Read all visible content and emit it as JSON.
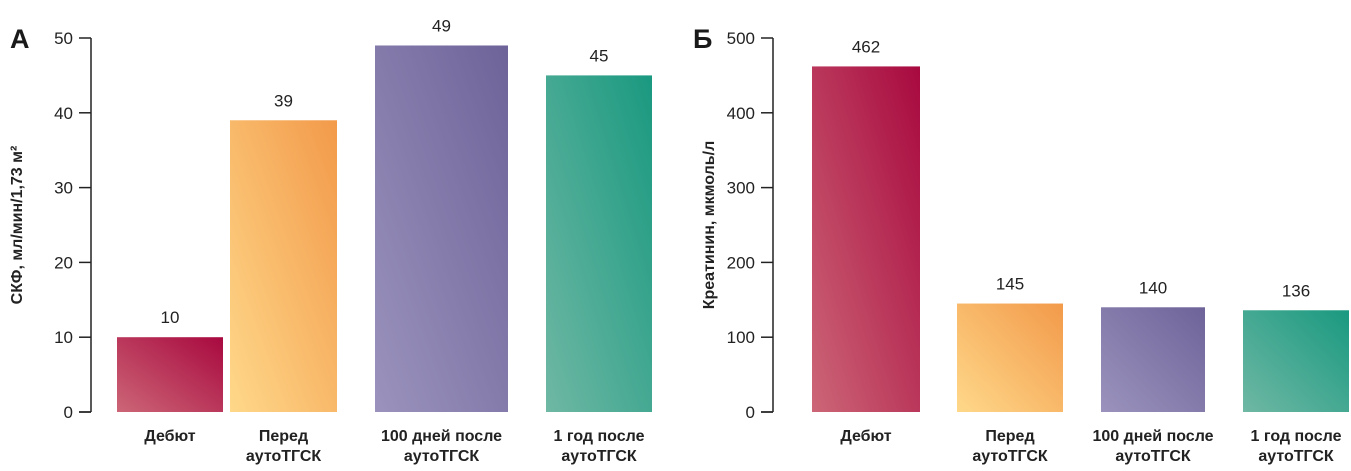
{
  "chart_data": [
    {
      "type": "bar",
      "panel_label": "А",
      "ylabel": "СКФ, мл/мин/1,73 м²",
      "ylim": [
        0,
        50
      ],
      "yticks": [
        0,
        10,
        20,
        30,
        40,
        50
      ],
      "categories": [
        [
          "Дебют"
        ],
        [
          "Перед",
          "аутоТГСК"
        ],
        [
          "100 дней после",
          "аутоТГСК"
        ],
        [
          "1 год после",
          "аутоТГСК"
        ]
      ],
      "values": [
        10,
        39,
        49,
        45
      ],
      "value_labels": [
        "10",
        "39",
        "49",
        "45"
      ],
      "bar_colors": [
        [
          "#cc6677",
          "#a8093f"
        ],
        [
          "#ffd88a",
          "#f29a4a"
        ],
        [
          "#9b93bd",
          "#6e6399"
        ],
        [
          "#6fb8a4",
          "#1a9980"
        ]
      ],
      "grid": false,
      "legend": "none"
    },
    {
      "type": "bar",
      "panel_label": "Б",
      "ylabel": "Креатинин, мкмоль/л",
      "ylim": [
        0,
        500
      ],
      "yticks": [
        0,
        100,
        200,
        300,
        400,
        500
      ],
      "categories": [
        [
          "Дебют"
        ],
        [
          "Перед",
          "аутоТГСК"
        ],
        [
          "100 дней после",
          "аутоТГСК"
        ],
        [
          "1 год после",
          "аутоТГСК"
        ]
      ],
      "values": [
        462,
        145,
        140,
        136
      ],
      "value_labels": [
        "462",
        "145",
        "140",
        "136"
      ],
      "bar_colors": [
        [
          "#cc6677",
          "#a8093f"
        ],
        [
          "#ffd88a",
          "#f29a4a"
        ],
        [
          "#9b93bd",
          "#6e6399"
        ],
        [
          "#6fb8a4",
          "#1a9980"
        ]
      ],
      "grid": false,
      "legend": "none"
    }
  ]
}
